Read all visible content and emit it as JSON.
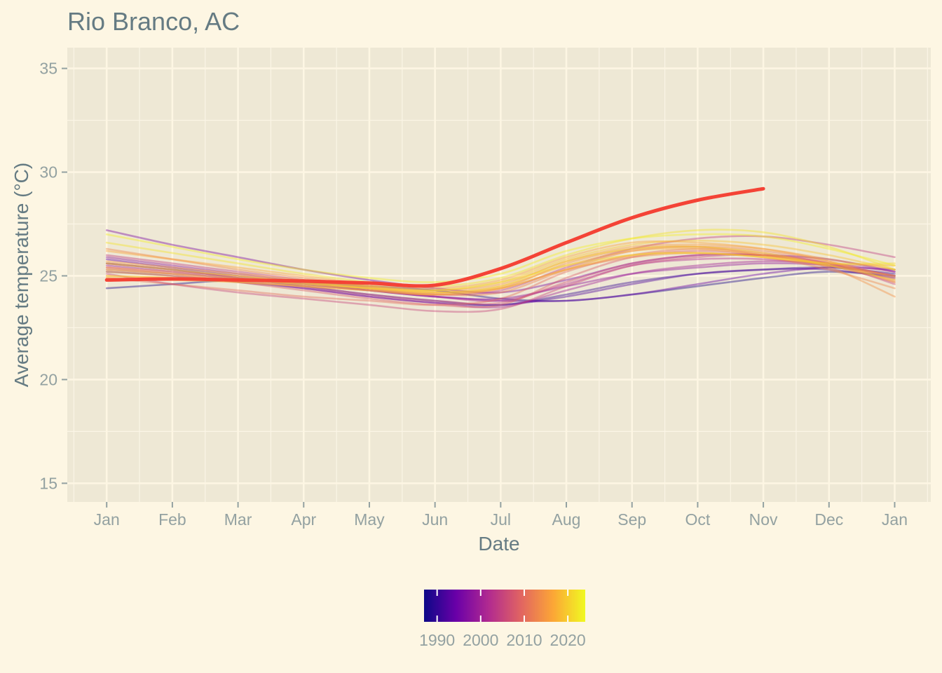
{
  "chart_data": {
    "type": "line",
    "title": "Rio Branco, AC",
    "xlabel": "Date",
    "ylabel": "Average temperature (°C)",
    "x_ticks": [
      "Jan",
      "Feb",
      "Mar",
      "Apr",
      "May",
      "Jun",
      "Jul",
      "Aug",
      "Sep",
      "Oct",
      "Nov",
      "Dec",
      "Jan"
    ],
    "x_range_months": [
      -0.6,
      12.55
    ],
    "y_ticks": [
      15,
      20,
      25,
      30,
      35
    ],
    "ylim": [
      14.1,
      36.0
    ],
    "grid": true,
    "legend": {
      "type": "colorbar",
      "placement": "bottom",
      "range": [
        1987,
        2024
      ],
      "ticks": [
        1990,
        2000,
        2010,
        2020
      ],
      "colors": [
        "#0d0887",
        "#6a00a8",
        "#b12a90",
        "#e16462",
        "#fca636",
        "#f0f921"
      ]
    },
    "highlight_color": "#f44336",
    "background_color": "#fdf6e3",
    "panel_color": "#eee8d5",
    "series": [
      {
        "year": 1988,
        "values": [
          24.4,
          24.6,
          24.8,
          24.7,
          24.5,
          24.3,
          23.9,
          23.8,
          24.1,
          24.5,
          24.9,
          25.2,
          25.0
        ]
      },
      {
        "year": 1990,
        "values": [
          25.6,
          25.3,
          24.9,
          24.5,
          24.1,
          23.8,
          23.6,
          24.1,
          24.7,
          25.1,
          25.3,
          25.4,
          25.1
        ]
      },
      {
        "year": 1992,
        "values": [
          25.2,
          25.0,
          24.7,
          24.4,
          24.0,
          23.7,
          23.6,
          24.0,
          24.6,
          25.1,
          25.3,
          25.3,
          24.9
        ]
      },
      {
        "year": 1994,
        "values": [
          25.8,
          25.4,
          25.0,
          24.6,
          24.3,
          24.0,
          23.8,
          23.8,
          24.1,
          24.6,
          25.1,
          25.4,
          25.3
        ]
      },
      {
        "year": 1996,
        "values": [
          27.2,
          26.5,
          25.9,
          25.3,
          24.8,
          24.4,
          24.2,
          24.8,
          25.6,
          26.0,
          26.0,
          25.8,
          25.2
        ]
      },
      {
        "year": 1998,
        "values": [
          25.9,
          25.5,
          25.1,
          24.7,
          24.3,
          24.0,
          23.9,
          24.5,
          25.1,
          25.4,
          25.6,
          25.5,
          25.0
        ]
      },
      {
        "year": 2000,
        "values": [
          25.5,
          25.2,
          24.8,
          24.4,
          24.0,
          23.7,
          23.5,
          24.3,
          25.1,
          25.5,
          25.7,
          25.6,
          25.2
        ]
      },
      {
        "year": 2002,
        "values": [
          25.3,
          25.1,
          24.9,
          24.6,
          24.3,
          24.0,
          23.8,
          24.6,
          25.5,
          25.8,
          25.8,
          25.5,
          25.0
        ]
      },
      {
        "year": 2004,
        "values": [
          26.0,
          25.6,
          25.2,
          24.8,
          24.4,
          24.1,
          24.3,
          25.4,
          26.3,
          26.8,
          26.9,
          26.5,
          25.9
        ]
      },
      {
        "year": 2005,
        "values": [
          25.1,
          24.6,
          24.2,
          23.9,
          23.6,
          23.3,
          23.4,
          24.5,
          25.5,
          25.9,
          26.0,
          25.6,
          24.6
        ]
      },
      {
        "year": 2006,
        "values": [
          25.6,
          25.3,
          24.9,
          24.5,
          24.1,
          23.8,
          23.7,
          24.7,
          25.6,
          26.0,
          26.0,
          25.6,
          25.0
        ]
      },
      {
        "year": 2008,
        "values": [
          25.4,
          25.1,
          24.7,
          24.3,
          23.9,
          23.6,
          23.6,
          24.9,
          25.9,
          26.2,
          26.0,
          25.5,
          24.7
        ]
      },
      {
        "year": 2010,
        "values": [
          24.9,
          24.6,
          24.3,
          24.0,
          23.8,
          23.6,
          23.9,
          25.2,
          26.0,
          26.3,
          26.1,
          25.6,
          24.8
        ]
      },
      {
        "year": 2012,
        "values": [
          25.4,
          25.2,
          25.0,
          24.7,
          24.4,
          24.1,
          24.2,
          25.3,
          26.2,
          26.4,
          26.2,
          25.7,
          24.9
        ]
      },
      {
        "year": 2013,
        "values": [
          26.3,
          25.8,
          25.3,
          24.9,
          24.5,
          24.2,
          24.4,
          25.3,
          25.9,
          26.1,
          25.9,
          25.3,
          24.4
        ]
      },
      {
        "year": 2014,
        "values": [
          25.0,
          24.9,
          24.7,
          24.5,
          24.3,
          24.1,
          24.4,
          25.6,
          26.3,
          26.4,
          26.0,
          25.4,
          24.0
        ]
      },
      {
        "year": 2015,
        "values": [
          25.7,
          25.4,
          25.1,
          24.8,
          24.5,
          24.3,
          24.6,
          25.7,
          26.4,
          26.5,
          26.3,
          25.8,
          25.3
        ]
      },
      {
        "year": 2016,
        "values": [
          26.2,
          25.8,
          25.4,
          25.0,
          24.6,
          24.4,
          24.8,
          25.9,
          26.6,
          26.6,
          26.3,
          25.7,
          24.7
        ]
      },
      {
        "year": 2017,
        "values": [
          25.2,
          25.0,
          24.8,
          24.6,
          24.4,
          24.2,
          24.5,
          25.5,
          26.2,
          26.3,
          26.0,
          25.6,
          25.5
        ]
      },
      {
        "year": 2018,
        "values": [
          24.9,
          24.8,
          24.7,
          24.5,
          24.3,
          24.1,
          24.4,
          25.3,
          26.0,
          26.1,
          25.9,
          25.5,
          25.0
        ]
      },
      {
        "year": 2019,
        "values": [
          25.3,
          25.1,
          24.9,
          24.7,
          24.5,
          24.3,
          24.7,
          25.8,
          26.5,
          26.7,
          26.5,
          26.0,
          25.3
        ]
      },
      {
        "year": 2020,
        "values": [
          25.6,
          25.3,
          25.0,
          24.7,
          24.4,
          24.2,
          24.5,
          25.7,
          26.3,
          26.4,
          26.1,
          25.5,
          24.8
        ]
      },
      {
        "year": 2021,
        "values": [
          25.0,
          24.9,
          24.8,
          24.6,
          24.4,
          24.3,
          24.7,
          25.5,
          26.0,
          26.1,
          25.9,
          25.6,
          25.6
        ]
      },
      {
        "year": 2022,
        "values": [
          26.6,
          26.1,
          25.6,
          25.1,
          24.7,
          24.5,
          24.9,
          26.0,
          26.8,
          27.2,
          27.1,
          26.4,
          25.3
        ]
      },
      {
        "year": 2023,
        "values": [
          27.0,
          26.4,
          25.8,
          25.3,
          24.9,
          24.7,
          25.1,
          26.2,
          26.8,
          27.0,
          26.9,
          26.3,
          25.5
        ]
      }
    ],
    "highlight_series": {
      "year": 2024,
      "values": [
        24.8,
        24.85,
        24.8,
        24.75,
        24.65,
        24.55,
        25.35,
        26.6,
        27.8,
        28.65,
        29.2
      ]
    }
  }
}
